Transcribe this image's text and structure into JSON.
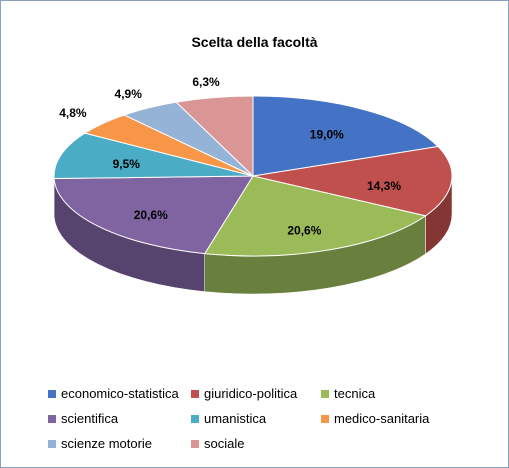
{
  "chart_data": {
    "type": "pie",
    "title": "Scelta della facoltà",
    "categories": [
      "economico-statistica",
      "giuridico-politica",
      "tecnica",
      "scientifica",
      "umanistica",
      "medico-sanitaria",
      "scienze motorie",
      "sociale"
    ],
    "values": [
      19.0,
      14.3,
      20.6,
      20.6,
      9.5,
      4.8,
      4.9,
      6.3
    ],
    "value_labels": [
      "19,0%",
      "14,3%",
      "20,6%",
      "20,6%",
      "9,5%",
      "4,8%",
      "4,9%",
      "6,3%"
    ],
    "colors": [
      "#4472C4",
      "#C0504D",
      "#9BBB59",
      "#8064A2",
      "#4BACC6",
      "#F79646",
      "#95B3D7",
      "#D99694"
    ],
    "style": "3d",
    "legend_position": "bottom"
  }
}
